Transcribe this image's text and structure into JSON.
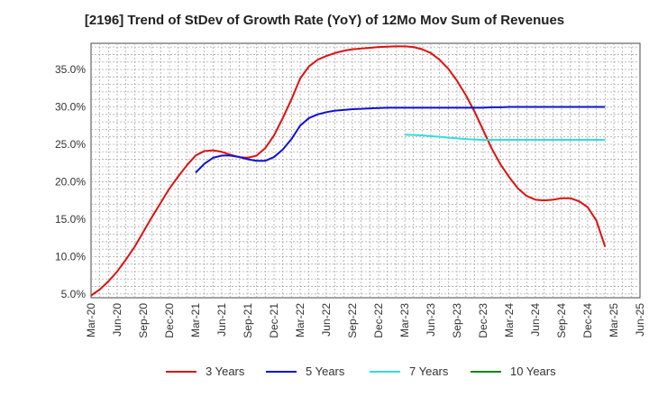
{
  "chart_data": {
    "type": "line",
    "title": "[2196]  Trend of StDev of Growth Rate (YoY) of 12Mo Mov Sum of Revenues",
    "xlabel": "",
    "ylabel": "",
    "ylim": [
      4.5,
      38.5
    ],
    "yticks": [
      5.0,
      10.0,
      15.0,
      20.0,
      25.0,
      30.0,
      35.0
    ],
    "ytick_labels": [
      "5.0%",
      "10.0%",
      "15.0%",
      "20.0%",
      "25.0%",
      "30.0%",
      "35.0%"
    ],
    "xtick_labels": [
      "Mar-20",
      "Jun-20",
      "Sep-20",
      "Dec-20",
      "Mar-21",
      "Jun-21",
      "Sep-21",
      "Dec-21",
      "Mar-22",
      "Jun-22",
      "Sep-22",
      "Dec-22",
      "Mar-23",
      "Jun-23",
      "Sep-23",
      "Dec-23",
      "Mar-24",
      "Jun-24",
      "Sep-24",
      "Dec-24",
      "Mar-25",
      "Jun-25"
    ],
    "x_start": "Mar-20",
    "x_months": 63,
    "grid": true,
    "legend_position": "bottom",
    "series": [
      {
        "name": "3 Years",
        "color": "#dd1111",
        "start_index": 0,
        "values": [
          4.8,
          5.6,
          6.7,
          8.0,
          9.6,
          11.3,
          13.3,
          15.3,
          17.2,
          19.1,
          20.7,
          22.2,
          23.5,
          24.1,
          24.2,
          24.0,
          23.6,
          23.3,
          23.2,
          23.5,
          24.5,
          26.2,
          28.5,
          31.0,
          33.8,
          35.4,
          36.3,
          36.8,
          37.2,
          37.5,
          37.7,
          37.8,
          37.9,
          38.0,
          38.05,
          38.1,
          38.1,
          38.0,
          37.7,
          37.2,
          36.3,
          35.1,
          33.5,
          31.6,
          29.4,
          26.9,
          24.4,
          22.3,
          20.6,
          19.1,
          18.1,
          17.6,
          17.5,
          17.6,
          17.8,
          17.8,
          17.4,
          16.6,
          14.8,
          11.3
        ]
      },
      {
        "name": "5 Years",
        "color": "#1111cc",
        "start_index": 12,
        "values": [
          21.2,
          22.4,
          23.2,
          23.5,
          23.5,
          23.3,
          23.0,
          22.8,
          22.8,
          23.3,
          24.3,
          25.7,
          27.5,
          28.5,
          29.0,
          29.3,
          29.5,
          29.6,
          29.7,
          29.75,
          29.8,
          29.85,
          29.9,
          29.9,
          29.9,
          29.9,
          29.9,
          29.9,
          29.9,
          29.9,
          29.9,
          29.9,
          29.9,
          29.9,
          29.95,
          29.95,
          30.0,
          30.0,
          30.0,
          30.0,
          30.0,
          30.0,
          30.0,
          30.0,
          30.0,
          30.0,
          30.0,
          30.0
        ]
      },
      {
        "name": "7 Years",
        "color": "#33dddd",
        "start_index": 36,
        "values": [
          26.3,
          26.25,
          26.2,
          26.1,
          26.0,
          25.9,
          25.8,
          25.7,
          25.65,
          25.6,
          25.6,
          25.6,
          25.6,
          25.6,
          25.6,
          25.6,
          25.6,
          25.6,
          25.6,
          25.6,
          25.6,
          25.6,
          25.6,
          25.6
        ]
      },
      {
        "name": "10 Years",
        "color": "#118811",
        "start_index": 0,
        "values": []
      }
    ]
  }
}
